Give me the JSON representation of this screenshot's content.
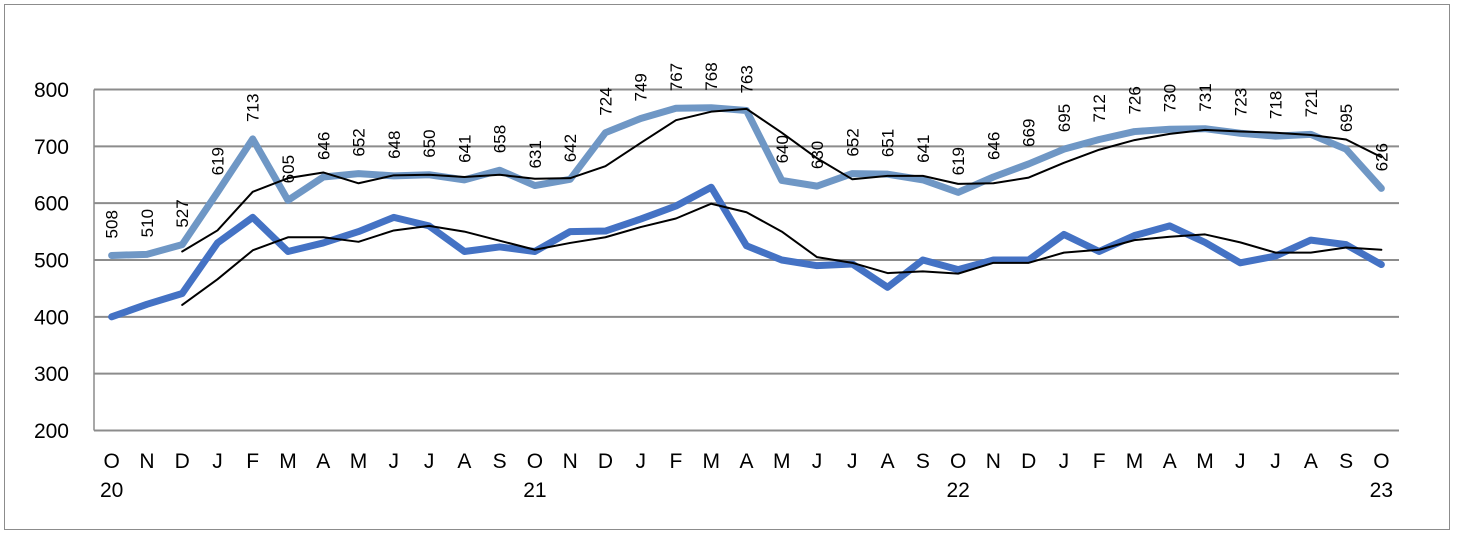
{
  "chart_data": {
    "type": "line",
    "title": "",
    "xlabel": "",
    "ylabel": "",
    "ylim": [
      200,
      800
    ],
    "yticks": [
      200,
      300,
      400,
      500,
      600,
      700,
      800
    ],
    "grid": true,
    "categories": [
      "O",
      "N",
      "D",
      "J",
      "F",
      "M",
      "A",
      "M",
      "J",
      "J",
      "A",
      "S",
      "O",
      "N",
      "D",
      "J",
      "F",
      "M",
      "A",
      "M",
      "J",
      "J",
      "A",
      "S",
      "O",
      "N",
      "D",
      "J",
      "F",
      "M",
      "A",
      "M",
      "J",
      "J",
      "A",
      "S",
      "O"
    ],
    "year_labels": [
      {
        "index": 0,
        "label": "20"
      },
      {
        "index": 12,
        "label": "21"
      },
      {
        "index": 24,
        "label": "22"
      },
      {
        "index": 36,
        "label": "23"
      }
    ],
    "series": [
      {
        "color": "#6f97c5",
        "width": 7,
        "labeled": true,
        "values": [
          508,
          510,
          527,
          619,
          713,
          605,
          646,
          652,
          648,
          650,
          641,
          658,
          631,
          642,
          724,
          749,
          767,
          768,
          763,
          640,
          630,
          652,
          651,
          641,
          619,
          646,
          669,
          695,
          712,
          726,
          730,
          731,
          723,
          718,
          721,
          695,
          626
        ]
      },
      {
        "color": "#000000",
        "width": 2,
        "values": [
          null,
          null,
          515,
          552,
          620,
          644,
          654,
          635,
          649,
          650,
          646,
          650,
          643,
          644,
          665,
          706,
          746,
          761,
          766,
          724,
          679,
          642,
          648,
          648,
          634,
          635,
          645,
          671,
          694,
          711,
          722,
          729,
          726,
          724,
          720,
          712,
          681
        ]
      },
      {
        "color": "#4472c4",
        "width": 7,
        "values": [
          400,
          422,
          441,
          530,
          575,
          515,
          530,
          550,
          575,
          560,
          515,
          523,
          515,
          550,
          551,
          572,
          595,
          628,
          525,
          500,
          490,
          493,
          452,
          500,
          483,
          500,
          500,
          545,
          515,
          543,
          560,
          531,
          495,
          507,
          535,
          527,
          492
        ]
      },
      {
        "color": "#000000",
        "width": 2,
        "values": [
          null,
          null,
          421,
          466,
          517,
          540,
          540,
          532,
          552,
          560,
          550,
          534,
          518,
          530,
          540,
          558,
          573,
          599,
          584,
          550,
          505,
          495,
          477,
          480,
          476,
          495,
          495,
          513,
          518,
          535,
          541,
          545,
          531,
          513,
          513,
          522,
          518
        ]
      }
    ]
  }
}
